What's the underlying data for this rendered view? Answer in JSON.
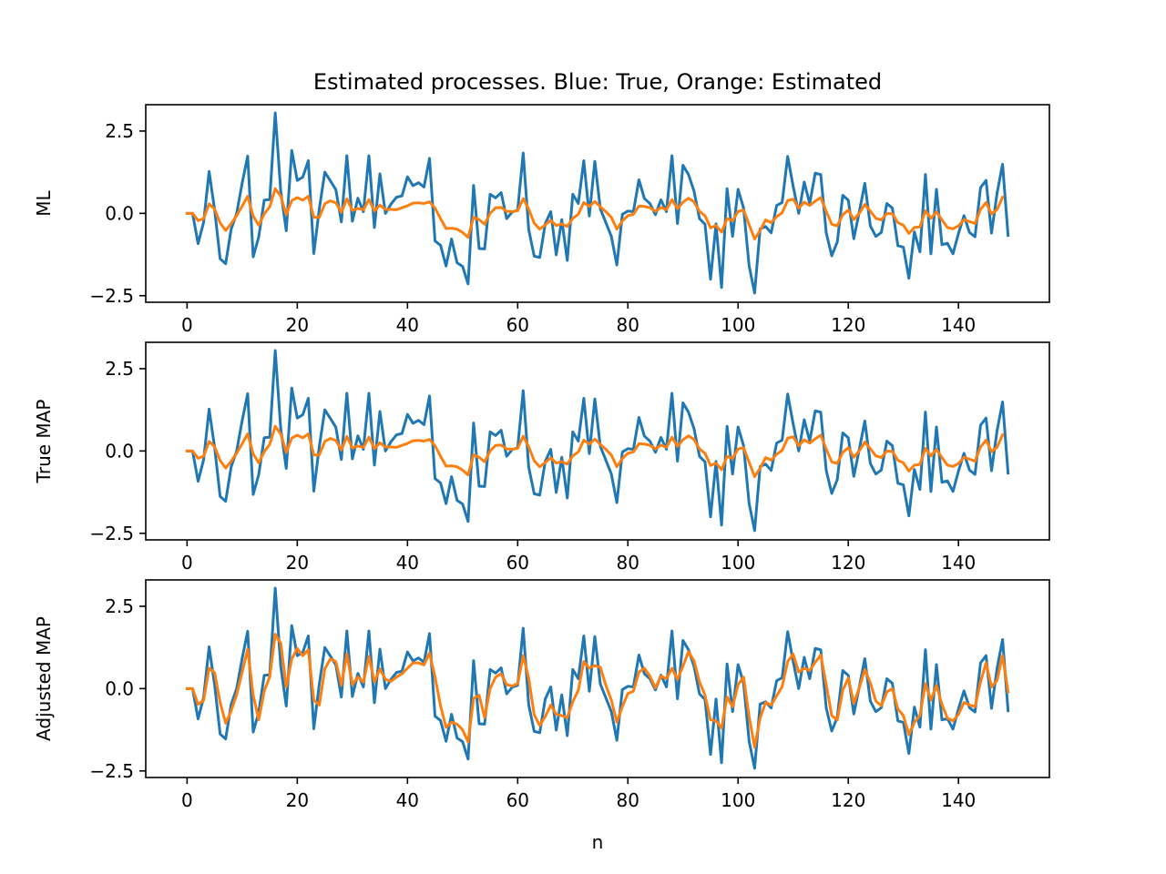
{
  "figure": {
    "title": "Estimated processes. Blue: True, Orange: Estimated"
  },
  "colors": {
    "true_series": "#1f77b4",
    "estimated_series": "#ff7f0e",
    "axes": "#000000",
    "background": "#ffffff"
  },
  "chart_data": [
    {
      "type": "line",
      "title": "Estimated processes. Blue: True, Orange: Estimated",
      "xlabel": "",
      "ylabel": "ML",
      "xlim": [
        -7.5,
        156.5
      ],
      "ylim": [
        -2.7,
        3.3
      ],
      "xticks": [
        0,
        20,
        40,
        60,
        80,
        100,
        120,
        140
      ],
      "xtick_labels": [
        "0",
        "20",
        "40",
        "60",
        "80",
        "100",
        "120",
        "140"
      ],
      "yticks": [
        2.5,
        0.0,
        -2.5
      ],
      "ytick_labels": [
        "2.5",
        "0.0",
        "−2.5"
      ],
      "grid": false,
      "series": [
        {
          "key": "true",
          "color": "#1f77b4",
          "values": [
            0.0,
            0.0,
            -0.92,
            -0.27,
            1.27,
            0.11,
            -1.38,
            -1.53,
            -0.48,
            0.0,
            0.92,
            1.74,
            -1.32,
            -0.72,
            0.4,
            0.42,
            3.05,
            0.67,
            -0.53,
            1.91,
            1.0,
            1.1,
            1.6,
            -1.22,
            0.14,
            1.25,
            0.99,
            0.72,
            -0.26,
            1.75,
            -0.24,
            0.46,
            0.05,
            1.75,
            -0.43,
            1.2,
            0.0,
            0.28,
            0.49,
            0.53,
            1.11,
            0.84,
            0.93,
            0.8,
            1.67,
            -0.84,
            -0.97,
            -1.6,
            -0.78,
            -1.5,
            -1.61,
            -2.14,
            0.85,
            -1.07,
            -1.08,
            0.58,
            0.47,
            0.63,
            -0.16,
            0.04,
            0.1,
            1.83,
            -0.49,
            -1.3,
            -1.34,
            -0.32,
            0.05,
            -1.26,
            -0.19,
            -1.43,
            0.58,
            0.3,
            1.6,
            -0.08,
            1.58,
            0.14,
            -0.28,
            -0.7,
            -1.57,
            -0.03,
            0.07,
            0.05,
            1.02,
            0.45,
            0.3,
            -0.04,
            0.41,
            0.05,
            1.75,
            -0.31,
            1.46,
            1.18,
            0.68,
            -0.16,
            -0.33,
            -2.0,
            -0.32,
            -2.25,
            0.75,
            -0.7,
            0.73,
            0.16,
            -1.59,
            -2.42,
            -0.47,
            -0.4,
            -0.59,
            0.24,
            0.33,
            1.73,
            0.82,
            0.0,
            0.95,
            0.3,
            1.22,
            1.18,
            -0.59,
            -1.29,
            -0.87,
            0.55,
            0.4,
            -0.77,
            0.05,
            0.91,
            -0.38,
            -0.7,
            -0.58,
            0.3,
            0.16,
            -0.98,
            -1.03,
            -1.97,
            -0.56,
            -1.17,
            1.18,
            -1.23,
            0.73,
            -0.95,
            -0.91,
            -1.23,
            -0.61,
            -0.07,
            -0.58,
            -0.71,
            0.78,
            1.0,
            -0.6,
            0.61,
            1.49,
            -0.67
          ]
        },
        {
          "key": "estimated",
          "color": "#ff7f0e",
          "values": [
            0.0,
            0.0,
            -0.22,
            -0.16,
            0.29,
            0.13,
            -0.29,
            -0.52,
            -0.31,
            -0.07,
            0.22,
            0.52,
            -0.09,
            -0.36,
            -0.02,
            0.2,
            0.75,
            0.52,
            -0.04,
            0.39,
            0.48,
            0.4,
            0.52,
            -0.12,
            -0.12,
            0.29,
            0.38,
            0.32,
            0.03,
            0.44,
            0.09,
            0.15,
            0.11,
            0.42,
            0.07,
            0.25,
            0.12,
            0.12,
            0.11,
            0.17,
            0.23,
            0.31,
            0.32,
            0.3,
            0.35,
            0.16,
            -0.16,
            -0.46,
            -0.45,
            -0.48,
            -0.58,
            -0.73,
            -0.12,
            -0.19,
            -0.33,
            0.0,
            0.17,
            0.18,
            0.06,
            0.05,
            0.08,
            0.45,
            0.13,
            -0.3,
            -0.48,
            -0.35,
            -0.21,
            -0.37,
            -0.32,
            -0.4,
            -0.15,
            -0.03,
            0.33,
            0.21,
            0.36,
            0.2,
            0.05,
            -0.12,
            -0.48,
            -0.23,
            -0.07,
            -0.03,
            0.22,
            0.21,
            0.17,
            0.06,
            0.18,
            0.11,
            0.42,
            0.14,
            0.34,
            0.46,
            0.35,
            0.06,
            -0.07,
            -0.44,
            -0.37,
            -0.57,
            -0.16,
            -0.23,
            0.06,
            0.1,
            -0.34,
            -0.78,
            -0.52,
            -0.2,
            -0.28,
            -0.1,
            0.02,
            0.39,
            0.43,
            0.16,
            0.34,
            0.24,
            0.37,
            0.48,
            0.06,
            -0.33,
            -0.38,
            -0.04,
            0.1,
            -0.19,
            0.0,
            0.27,
            0.07,
            -0.15,
            -0.2,
            0.0,
            -0.01,
            -0.28,
            -0.36,
            -0.61,
            -0.43,
            -0.41,
            0.08,
            -0.15,
            0.05,
            -0.2,
            -0.43,
            -0.47,
            -0.38,
            -0.19,
            -0.25,
            -0.31,
            0.12,
            0.33,
            -0.02,
            0.11,
            0.49
          ]
        }
      ]
    },
    {
      "type": "line",
      "xlabel": "",
      "ylabel": "True MAP",
      "xlim": [
        -7.5,
        156.5
      ],
      "ylim": [
        -2.7,
        3.3
      ],
      "xticks": [
        0,
        20,
        40,
        60,
        80,
        100,
        120,
        140
      ],
      "xtick_labels": [
        "0",
        "20",
        "40",
        "60",
        "80",
        "100",
        "120",
        "140"
      ],
      "yticks": [
        2.5,
        0.0,
        -2.5
      ],
      "ytick_labels": [
        "2.5",
        "0.0",
        "−2.5"
      ],
      "grid": false,
      "series": [
        {
          "key": "true",
          "color": "#1f77b4",
          "values": [
            0.0,
            0.0,
            -0.92,
            -0.27,
            1.27,
            0.11,
            -1.38,
            -1.53,
            -0.48,
            0.0,
            0.92,
            1.74,
            -1.32,
            -0.72,
            0.4,
            0.42,
            3.05,
            0.67,
            -0.53,
            1.91,
            1.0,
            1.1,
            1.6,
            -1.22,
            0.14,
            1.25,
            0.99,
            0.72,
            -0.26,
            1.75,
            -0.24,
            0.46,
            0.05,
            1.75,
            -0.43,
            1.2,
            0.0,
            0.28,
            0.49,
            0.53,
            1.11,
            0.84,
            0.93,
            0.8,
            1.67,
            -0.84,
            -0.97,
            -1.6,
            -0.78,
            -1.5,
            -1.61,
            -2.14,
            0.85,
            -1.07,
            -1.08,
            0.58,
            0.47,
            0.63,
            -0.16,
            0.04,
            0.1,
            1.83,
            -0.49,
            -1.3,
            -1.34,
            -0.32,
            0.05,
            -1.26,
            -0.19,
            -1.43,
            0.58,
            0.3,
            1.6,
            -0.08,
            1.58,
            0.14,
            -0.28,
            -0.7,
            -1.57,
            -0.03,
            0.07,
            0.05,
            1.02,
            0.45,
            0.3,
            -0.04,
            0.41,
            0.05,
            1.75,
            -0.31,
            1.46,
            1.18,
            0.68,
            -0.16,
            -0.33,
            -2.0,
            -0.32,
            -2.25,
            0.75,
            -0.7,
            0.73,
            0.16,
            -1.59,
            -2.42,
            -0.47,
            -0.4,
            -0.59,
            0.24,
            0.33,
            1.73,
            0.82,
            0.0,
            0.95,
            0.3,
            1.22,
            1.18,
            -0.59,
            -1.29,
            -0.87,
            0.55,
            0.4,
            -0.77,
            0.05,
            0.91,
            -0.38,
            -0.7,
            -0.58,
            0.3,
            0.16,
            -0.98,
            -1.03,
            -1.97,
            -0.56,
            -1.17,
            1.18,
            -1.23,
            0.73,
            -0.95,
            -0.91,
            -1.23,
            -0.61,
            -0.07,
            -0.58,
            -0.71,
            0.78,
            1.0,
            -0.6,
            0.61,
            1.49,
            -0.67
          ]
        },
        {
          "key": "estimated",
          "color": "#ff7f0e",
          "values": [
            0.0,
            0.0,
            -0.22,
            -0.16,
            0.29,
            0.13,
            -0.29,
            -0.52,
            -0.31,
            -0.07,
            0.22,
            0.52,
            -0.09,
            -0.36,
            -0.02,
            0.2,
            0.75,
            0.52,
            -0.04,
            0.39,
            0.48,
            0.4,
            0.52,
            -0.12,
            -0.12,
            0.29,
            0.38,
            0.32,
            0.03,
            0.44,
            0.09,
            0.15,
            0.11,
            0.42,
            0.07,
            0.25,
            0.12,
            0.12,
            0.11,
            0.17,
            0.23,
            0.31,
            0.32,
            0.3,
            0.35,
            0.16,
            -0.16,
            -0.46,
            -0.45,
            -0.48,
            -0.58,
            -0.73,
            -0.12,
            -0.19,
            -0.33,
            0.0,
            0.17,
            0.18,
            0.06,
            0.05,
            0.08,
            0.45,
            0.13,
            -0.3,
            -0.48,
            -0.35,
            -0.21,
            -0.37,
            -0.32,
            -0.4,
            -0.15,
            -0.03,
            0.33,
            0.21,
            0.36,
            0.2,
            0.05,
            -0.12,
            -0.48,
            -0.23,
            -0.07,
            -0.03,
            0.22,
            0.21,
            0.17,
            0.06,
            0.18,
            0.11,
            0.42,
            0.14,
            0.34,
            0.46,
            0.35,
            0.06,
            -0.07,
            -0.44,
            -0.37,
            -0.57,
            -0.16,
            -0.23,
            0.06,
            0.1,
            -0.34,
            -0.78,
            -0.52,
            -0.2,
            -0.28,
            -0.1,
            0.02,
            0.39,
            0.43,
            0.16,
            0.34,
            0.24,
            0.37,
            0.48,
            0.06,
            -0.33,
            -0.38,
            -0.04,
            0.1,
            -0.19,
            0.0,
            0.27,
            0.07,
            -0.15,
            -0.2,
            0.0,
            -0.01,
            -0.28,
            -0.36,
            -0.61,
            -0.43,
            -0.41,
            0.08,
            -0.15,
            0.05,
            -0.2,
            -0.43,
            -0.47,
            -0.38,
            -0.19,
            -0.25,
            -0.31,
            0.12,
            0.33,
            -0.02,
            0.11,
            0.49
          ]
        }
      ]
    },
    {
      "type": "line",
      "xlabel": "n",
      "ylabel": "Adjusted MAP",
      "xlim": [
        -7.5,
        156.5
      ],
      "ylim": [
        -2.7,
        3.3
      ],
      "xticks": [
        0,
        20,
        40,
        60,
        80,
        100,
        120,
        140
      ],
      "xtick_labels": [
        "0",
        "20",
        "40",
        "60",
        "80",
        "100",
        "120",
        "140"
      ],
      "yticks": [
        2.5,
        0.0,
        -2.5
      ],
      "ytick_labels": [
        "2.5",
        "0.0",
        "−2.5"
      ],
      "grid": false,
      "series": [
        {
          "key": "true",
          "color": "#1f77b4",
          "values": [
            0.0,
            0.0,
            -0.92,
            -0.27,
            1.27,
            0.11,
            -1.38,
            -1.53,
            -0.48,
            0.0,
            0.92,
            1.74,
            -1.32,
            -0.72,
            0.4,
            0.42,
            3.05,
            0.67,
            -0.53,
            1.91,
            1.0,
            1.1,
            1.6,
            -1.22,
            0.14,
            1.25,
            0.99,
            0.72,
            -0.26,
            1.75,
            -0.24,
            0.46,
            0.05,
            1.75,
            -0.43,
            1.2,
            0.0,
            0.28,
            0.49,
            0.53,
            1.11,
            0.84,
            0.93,
            0.8,
            1.67,
            -0.84,
            -0.97,
            -1.6,
            -0.78,
            -1.5,
            -1.61,
            -2.14,
            0.85,
            -1.07,
            -1.08,
            0.58,
            0.47,
            0.63,
            -0.16,
            0.04,
            0.1,
            1.83,
            -0.49,
            -1.3,
            -1.34,
            -0.32,
            0.05,
            -1.26,
            -0.19,
            -1.43,
            0.58,
            0.3,
            1.6,
            -0.08,
            1.58,
            0.14,
            -0.28,
            -0.7,
            -1.57,
            -0.03,
            0.07,
            0.05,
            1.02,
            0.45,
            0.3,
            -0.04,
            0.41,
            0.05,
            1.75,
            -0.31,
            1.46,
            1.18,
            0.68,
            -0.16,
            -0.33,
            -2.0,
            -0.32,
            -2.25,
            0.75,
            -0.7,
            0.73,
            0.16,
            -1.59,
            -2.42,
            -0.47,
            -0.4,
            -0.59,
            0.24,
            0.33,
            1.73,
            0.82,
            0.0,
            0.95,
            0.3,
            1.22,
            1.18,
            -0.59,
            -1.29,
            -0.87,
            0.55,
            0.4,
            -0.77,
            0.05,
            0.91,
            -0.38,
            -0.7,
            -0.58,
            0.3,
            0.16,
            -0.98,
            -1.03,
            -1.97,
            -0.56,
            -1.17,
            1.18,
            -1.23,
            0.73,
            -0.95,
            -0.91,
            -1.23,
            -0.61,
            -0.07,
            -0.58,
            -0.71,
            0.78,
            1.0,
            -0.6,
            0.61,
            1.49,
            -0.67
          ]
        },
        {
          "key": "estimated",
          "color": "#ff7f0e",
          "values": [
            0.0,
            0.0,
            -0.48,
            -0.36,
            0.62,
            0.48,
            -0.42,
            -1.05,
            -0.68,
            -0.18,
            0.5,
            1.2,
            -0.2,
            -0.95,
            -0.08,
            0.36,
            1.65,
            1.38,
            0.05,
            0.9,
            1.22,
            1.0,
            1.18,
            -0.35,
            -0.5,
            0.6,
            0.9,
            0.82,
            0.1,
            1.05,
            0.12,
            0.35,
            0.2,
            0.98,
            0.2,
            0.6,
            0.28,
            0.22,
            0.35,
            0.45,
            0.62,
            0.78,
            0.78,
            0.72,
            1.08,
            0.35,
            -0.52,
            -1.18,
            -1.02,
            -1.08,
            -1.25,
            -1.62,
            -0.3,
            -0.2,
            -0.88,
            0.0,
            0.35,
            0.45,
            0.12,
            0.08,
            0.15,
            1.0,
            0.32,
            -0.8,
            -1.12,
            -0.85,
            -0.5,
            -0.78,
            -0.82,
            -0.88,
            -0.4,
            -0.05,
            0.82,
            0.62,
            0.7,
            0.65,
            0.1,
            -0.35,
            -1.02,
            -0.55,
            -0.15,
            -0.08,
            0.5,
            0.62,
            0.38,
            0.02,
            0.38,
            0.3,
            0.62,
            0.28,
            0.68,
            1.12,
            0.85,
            0.2,
            -0.2,
            -0.95,
            -0.98,
            -1.2,
            -0.25,
            -0.55,
            0.12,
            0.35,
            -0.85,
            -1.78,
            -0.9,
            -0.42,
            -0.5,
            -0.22,
            0.06,
            0.82,
            1.05,
            0.5,
            0.62,
            0.55,
            0.8,
            1.02,
            0.12,
            -0.82,
            -0.95,
            -0.05,
            0.32,
            -0.45,
            0.02,
            0.58,
            0.18,
            -0.38,
            -0.52,
            -0.1,
            0.0,
            -0.62,
            -0.82,
            -1.4,
            -1.02,
            -0.82,
            0.15,
            -0.35,
            0.1,
            -0.48,
            -0.9,
            -0.98,
            -0.78,
            -0.42,
            -0.5,
            -0.55,
            0.2,
            0.78,
            0.05,
            0.25,
            1.0,
            -0.1
          ]
        }
      ]
    }
  ]
}
